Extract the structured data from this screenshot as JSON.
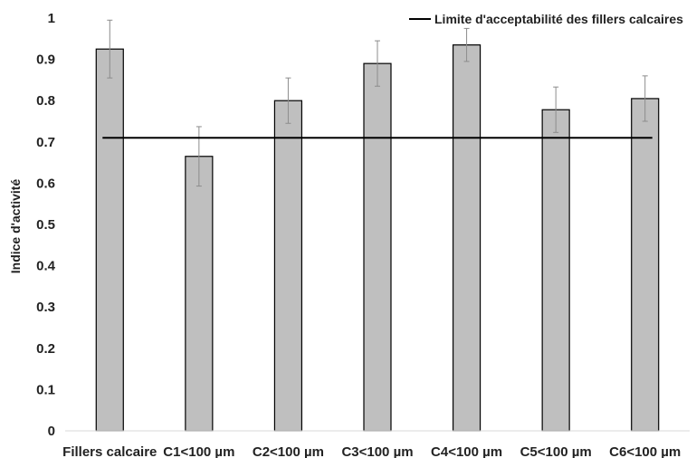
{
  "chart_data": {
    "type": "bar",
    "ylabel": "Indice d'activité",
    "xlabel": "",
    "ylim": [
      0,
      1
    ],
    "yticks": [
      "0",
      "0.1",
      "0.2",
      "0.3",
      "0.4",
      "0.5",
      "0.6",
      "0.7",
      "0.8",
      "0.9",
      "1"
    ],
    "categories": [
      "Fillers calcaire",
      "C1<100 µm",
      "C2<100 µm",
      "C3<100 µm",
      "C4<100 µm",
      "C5<100 µm",
      "C6<100 µm"
    ],
    "values": [
      0.925,
      0.665,
      0.8,
      0.89,
      0.935,
      0.778,
      0.805
    ],
    "error_bars": [
      0.07,
      0.072,
      0.055,
      0.055,
      0.04,
      0.055,
      0.055
    ],
    "reference_line": {
      "name": "Limite d'acceptabilité des fillers calcaires",
      "value": 0.71
    },
    "legend_position": "top-right",
    "grid": false,
    "colors": {
      "bar_fill": "#bfbfbf",
      "bar_stroke": "#000000",
      "reference_line": "#000000",
      "error_bar": "#8c8c8c"
    }
  }
}
